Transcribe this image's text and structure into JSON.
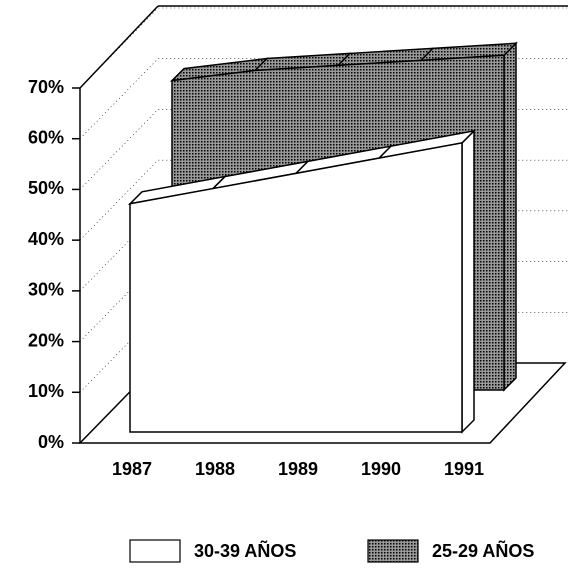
{
  "chart_data": {
    "type": "area3d",
    "categories": [
      "1987",
      "1988",
      "1989",
      "1990",
      "1991"
    ],
    "series": [
      {
        "name": "30-39 AÑOS",
        "color": "#ffffff",
        "values": [
          45,
          48,
          51,
          54,
          57
        ]
      },
      {
        "name": "25-29 AÑOS",
        "color": "#555555",
        "values": [
          61,
          63,
          64,
          65,
          66
        ]
      }
    ],
    "ylim": [
      0,
      70
    ],
    "yticks": [
      {
        "value": 0,
        "label": "0%"
      },
      {
        "value": 10,
        "label": "10%"
      },
      {
        "value": 20,
        "label": "20%"
      },
      {
        "value": 30,
        "label": "30%"
      },
      {
        "value": 40,
        "label": "40%"
      },
      {
        "value": 50,
        "label": "50%"
      },
      {
        "value": 60,
        "label": "60%"
      },
      {
        "value": 70,
        "label": "70%"
      }
    ],
    "grid": true
  }
}
